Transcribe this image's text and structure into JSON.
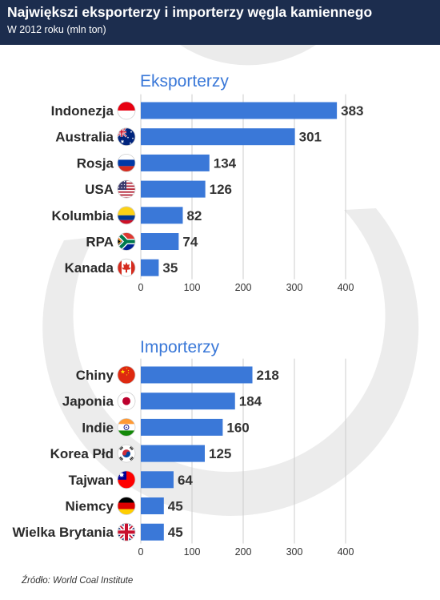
{
  "header": {
    "title": "Największi eksporterzy i importerzy węgla kamiennego",
    "subtitle": "W 2012 roku (mln ton)"
  },
  "source": "Źródło: World Coal Institute",
  "colors": {
    "header_bg": "#1c2d4e",
    "bar": "#3a78d8",
    "section_title": "#3a78d8",
    "watermark": "#ebebeb"
  },
  "chart_data": [
    {
      "type": "bar",
      "orientation": "horizontal",
      "title": "Eksporterzy",
      "categories": [
        "Indonezja",
        "Australia",
        "Rosja",
        "USA",
        "Kolumbia",
        "RPA",
        "Kanada"
      ],
      "flags": [
        "indonesia-flag",
        "australia-flag",
        "russia-flag",
        "usa-flag",
        "colombia-flag",
        "south-africa-flag",
        "canada-flag"
      ],
      "values": [
        383,
        301,
        134,
        126,
        82,
        74,
        35
      ],
      "xlim": [
        0,
        400
      ],
      "xticks": [
        0,
        100,
        200,
        300,
        400
      ],
      "grid": true
    },
    {
      "type": "bar",
      "orientation": "horizontal",
      "title": "Importerzy",
      "categories": [
        "Chiny",
        "Japonia",
        "Indie",
        "Korea Płd",
        "Tajwan",
        "Niemcy",
        "Wielka Brytania"
      ],
      "flags": [
        "china-flag",
        "japan-flag",
        "india-flag",
        "south-korea-flag",
        "taiwan-flag",
        "germany-flag",
        "united-kingdom-flag"
      ],
      "values": [
        218,
        184,
        160,
        125,
        64,
        45,
        45
      ],
      "xlim": [
        0,
        400
      ],
      "xticks": [
        0,
        100,
        200,
        300,
        400
      ],
      "grid": true
    }
  ]
}
